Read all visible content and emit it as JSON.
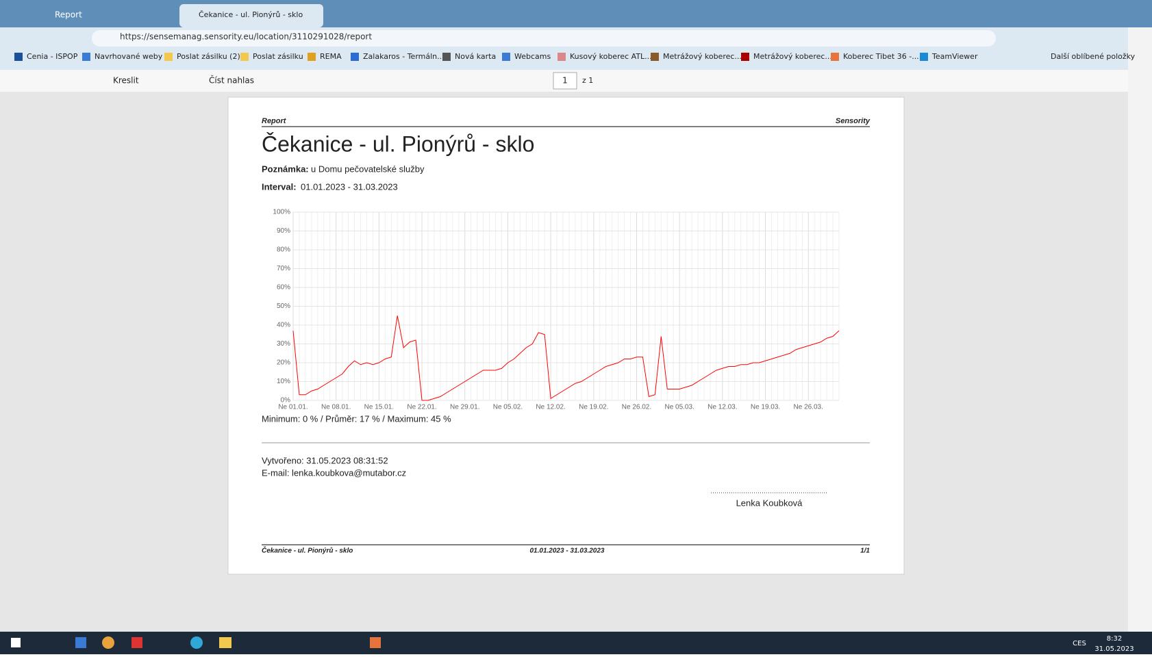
{
  "browser": {
    "tabs": [
      "Report",
      "Čekanice - ul. Pionýrů - sklo"
    ],
    "url": "https://sensemanag.sensority.eu/location/3110291028/report",
    "bookmarks": [
      "Cenia - ISPOP",
      "Navrhované weby",
      "Poslat zásilku (2)",
      "Poslat zásilku",
      "REMA",
      "Zalakaros - Termáln...",
      "Nová karta",
      "Webcams",
      "Kusový koberec ATL...",
      "Metrážový koberec...",
      "Metrážový koberec...",
      "Koberec Tibet 36 -...",
      "TeamViewer"
    ],
    "favorites": "Další oblíbené položky"
  },
  "pdf_toolbar": {
    "draw": "Kreslit",
    "read_aloud": "Číst nahlas",
    "page": "1",
    "page_total": "z 1"
  },
  "document": {
    "header_left": "Report",
    "header_right": "Sensority",
    "title": "Čekanice - ul. Pionýrů - sklo",
    "note_label": "Poznámka:",
    "note": "u Domu pečovatelské služby",
    "interval_label": "Interval:",
    "interval": "01.01.2023 - 31.03.2023",
    "summary": "Minimum: 0 % / Průměr: 17 % / Maximum: 45 %",
    "created": "Vytvořeno: 31.05.2023 08:31:52",
    "email": "E-mail: lenka.koubkova@mutabor.cz",
    "signature": "Lenka Koubková",
    "footer_left": "Čekanice - ul. Pionýrů - sklo",
    "footer_center": "01.01.2023 - 31.03.2023",
    "footer_right": "1/1"
  },
  "chart_data": {
    "type": "line",
    "color": "#ff0000",
    "grid": true,
    "categories": [
      "Ne 01.01.",
      null,
      null,
      null,
      null,
      null,
      null,
      "Ne 08.01.",
      null,
      null,
      null,
      null,
      null,
      null,
      "Ne 15.01.",
      null,
      null,
      null,
      null,
      null,
      null,
      "Ne 22.01.",
      null,
      null,
      null,
      null,
      null,
      null,
      "Ne 29.01.",
      null,
      null,
      null,
      null,
      null,
      null,
      "Ne 05.02.",
      null,
      null,
      null,
      null,
      null,
      null,
      "Ne 12.02.",
      null,
      null,
      null,
      null,
      null,
      null,
      "Ne 19.02.",
      null,
      null,
      null,
      null,
      null,
      null,
      "Ne 26.02.",
      null,
      null,
      null,
      null,
      null,
      null,
      "Ne 05.03.",
      null,
      null,
      null,
      null,
      null,
      null,
      "Ne 12.03.",
      null,
      null,
      null,
      null,
      null,
      null,
      "Ne 19.03.",
      null,
      null,
      null,
      null,
      null,
      null,
      "Ne 26.03.",
      null,
      null,
      null,
      null,
      null
    ],
    "values": [
      37,
      3,
      3,
      5,
      6,
      8,
      10,
      12,
      14,
      18,
      21,
      19,
      20,
      19,
      20,
      22,
      23,
      45,
      28,
      31,
      32,
      0,
      0,
      1,
      2,
      4,
      6,
      8,
      10,
      12,
      14,
      16,
      16,
      16,
      17,
      20,
      22,
      25,
      28,
      30,
      36,
      35,
      1,
      3,
      5,
      7,
      9,
      10,
      12,
      14,
      16,
      18,
      19,
      20,
      22,
      22,
      23,
      23,
      2,
      3,
      34,
      6,
      6,
      6,
      7,
      8,
      10,
      12,
      14,
      16,
      17,
      18,
      18,
      19,
      19,
      20,
      20,
      21,
      22,
      23,
      24,
      25,
      27,
      28,
      29,
      30,
      31,
      33,
      34,
      37
    ],
    "ylim": [
      0,
      100
    ],
    "yticks": [
      {
        "value": 0,
        "label": "0%"
      },
      {
        "value": 10,
        "label": "10%"
      },
      {
        "value": 20,
        "label": "20%"
      },
      {
        "value": 30,
        "label": "30%"
      },
      {
        "value": 40,
        "label": "40%"
      },
      {
        "value": 50,
        "label": "50%"
      },
      {
        "value": 60,
        "label": "60%"
      },
      {
        "value": 70,
        "label": "70%"
      },
      {
        "value": 80,
        "label": "80%"
      },
      {
        "value": 90,
        "label": "90%"
      },
      {
        "value": 100,
        "label": "100%"
      }
    ]
  },
  "taskbar": {
    "language": "CES",
    "time": "8:32",
    "date": "31.05.2023"
  }
}
